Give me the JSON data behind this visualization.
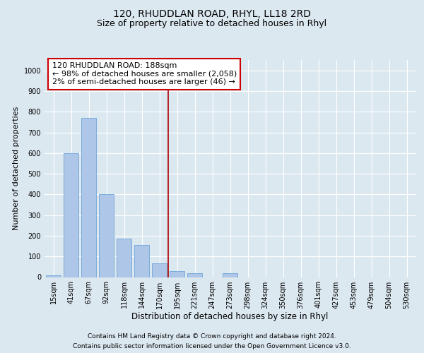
{
  "title": "120, RHUDDLAN ROAD, RHYL, LL18 2RD",
  "subtitle": "Size of property relative to detached houses in Rhyl",
  "xlabel": "Distribution of detached houses by size in Rhyl",
  "ylabel": "Number of detached properties",
  "footer_line1": "Contains HM Land Registry data © Crown copyright and database right 2024.",
  "footer_line2": "Contains public sector information licensed under the Open Government Licence v3.0.",
  "categories": [
    "15sqm",
    "41sqm",
    "67sqm",
    "92sqm",
    "118sqm",
    "144sqm",
    "170sqm",
    "195sqm",
    "221sqm",
    "247sqm",
    "273sqm",
    "298sqm",
    "324sqm",
    "350sqm",
    "376sqm",
    "401sqm",
    "427sqm",
    "453sqm",
    "479sqm",
    "504sqm",
    "530sqm"
  ],
  "values": [
    10,
    600,
    770,
    400,
    185,
    155,
    65,
    30,
    20,
    0,
    20,
    0,
    0,
    0,
    0,
    0,
    0,
    0,
    0,
    0,
    0
  ],
  "bar_color": "#aec6e8",
  "bar_edge_color": "#5a9bd4",
  "vline_index": 7,
  "vline_color": "#aa0000",
  "annotation_box_text": "120 RHUDDLAN ROAD: 188sqm\n← 98% of detached houses are smaller (2,058)\n2% of semi-detached houses are larger (46) →",
  "box_edge_color": "#cc0000",
  "ylim": [
    0,
    1050
  ],
  "yticks": [
    0,
    100,
    200,
    300,
    400,
    500,
    600,
    700,
    800,
    900,
    1000
  ],
  "background_color": "#dce8f0",
  "plot_bg_color": "#dce8f0",
  "grid_color": "#ffffff",
  "title_fontsize": 10,
  "subtitle_fontsize": 9,
  "xlabel_fontsize": 8.5,
  "ylabel_fontsize": 8,
  "tick_fontsize": 7,
  "annotation_fontsize": 8,
  "footer_fontsize": 6.5
}
